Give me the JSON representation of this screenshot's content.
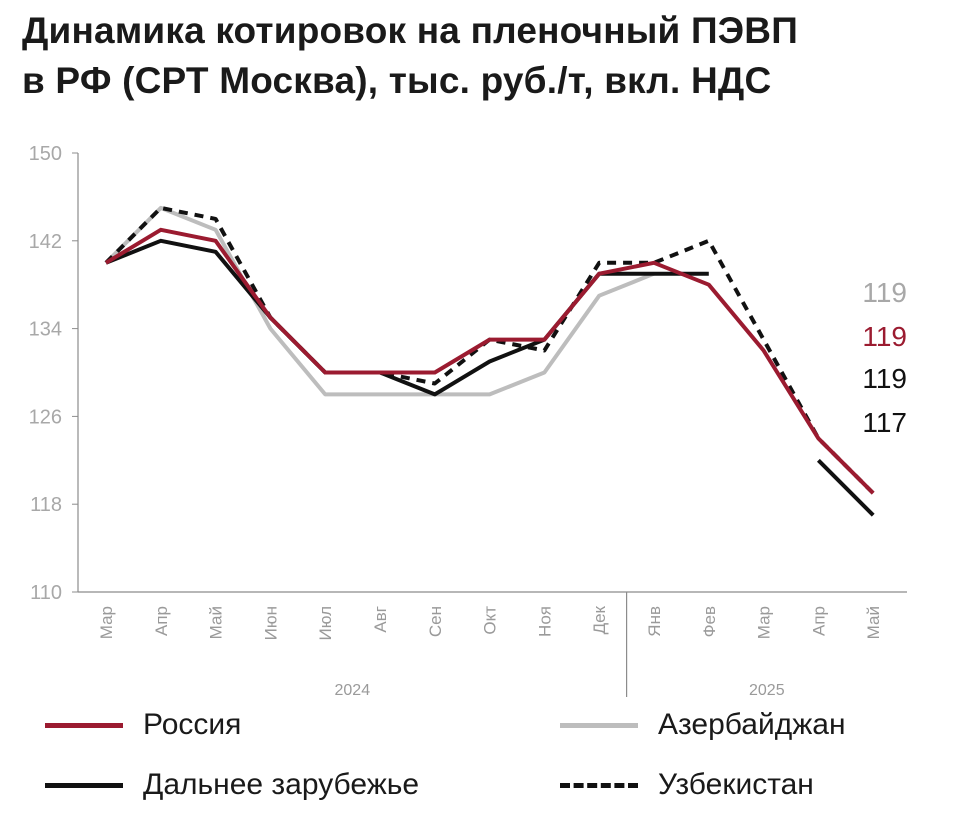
{
  "title_line1": "Динамика котировок на пленочный ПЭВП",
  "title_line2": "в РФ (СРТ Москва), тыс. руб./т, вкл. НДС",
  "chart_data": {
    "type": "line",
    "categories": [
      "Мар",
      "Апр",
      "Май",
      "Июн",
      "Июл",
      "Авг",
      "Сен",
      "Окт",
      "Ноя",
      "Дек",
      "Янв",
      "Фев",
      "Мар",
      "Апр",
      "Май"
    ],
    "years": [
      {
        "label": "2024",
        "from": 0,
        "to": 9
      },
      {
        "label": "2025",
        "from": 10,
        "to": 14
      }
    ],
    "ylim": [
      110,
      150
    ],
    "yticks": [
      110,
      118,
      126,
      134,
      142,
      150
    ],
    "series": [
      {
        "name": "Азербайджан",
        "color": "#bdbdbd",
        "dash": "none",
        "values": [
          140,
          145,
          143,
          134,
          128,
          128,
          128,
          128,
          130,
          137,
          139,
          null,
          null,
          null,
          null
        ]
      },
      {
        "name": "Дальнее зарубежье",
        "color": "#111111",
        "dash": "none",
        "values": [
          140,
          142,
          141,
          135,
          130,
          130,
          128,
          131,
          133,
          139,
          139,
          139,
          null,
          122,
          117
        ]
      },
      {
        "name": "Узбекистан",
        "color": "#111111",
        "dash": "9,7",
        "values": [
          140,
          145,
          144,
          135,
          130,
          130,
          129,
          133,
          132,
          140,
          140,
          142,
          133,
          124,
          119
        ]
      },
      {
        "name": "Россия",
        "color": "#9b1b30",
        "dash": "none",
        "values": [
          140,
          143,
          142,
          135,
          130,
          130,
          130,
          133,
          133,
          139,
          140,
          138,
          132,
          124,
          119
        ]
      }
    ],
    "end_labels": [
      {
        "text": "119",
        "color": "#a8a8a8"
      },
      {
        "text": "119",
        "color": "#9b1b30"
      },
      {
        "text": "119",
        "color": "#111111"
      },
      {
        "text": "117",
        "color": "#111111"
      }
    ],
    "legend": [
      {
        "label": "Россия",
        "color": "#9b1b30",
        "style": "solid"
      },
      {
        "label": "Азербайджан",
        "color": "#bdbdbd",
        "style": "solid"
      },
      {
        "label": "Дальнее зарубежье",
        "color": "#111111",
        "style": "solid"
      },
      {
        "label": "Узбекистан",
        "color": "#111111",
        "style": "dashed"
      }
    ]
  }
}
